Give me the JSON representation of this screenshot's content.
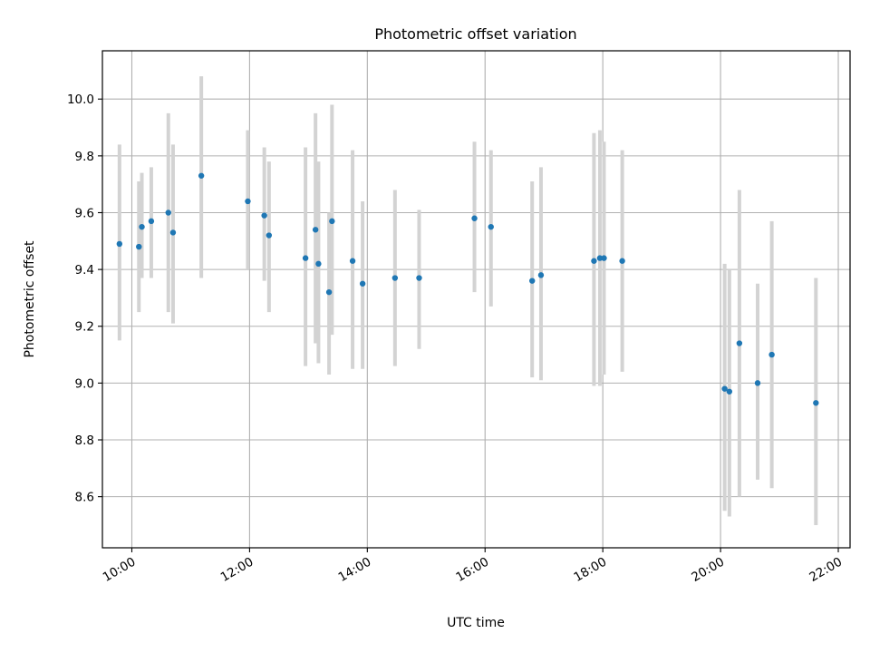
{
  "chart_data": {
    "type": "scatter",
    "title": "Photometric offset variation",
    "xlabel": "UTC time",
    "ylabel": "Photometric offset",
    "grid": true,
    "x_unit": "hours (UTC)",
    "xlim": [
      9.5,
      22.2
    ],
    "ylim": [
      8.42,
      10.17
    ],
    "x_ticks": [
      10,
      12,
      14,
      16,
      18,
      20,
      22
    ],
    "x_tick_labels": [
      "10:00",
      "12:00",
      "14:00",
      "16:00",
      "18:00",
      "20:00",
      "22:00"
    ],
    "y_ticks": [
      8.6,
      8.8,
      9.0,
      9.2,
      9.4,
      9.6,
      9.8,
      10.0
    ],
    "y_tick_labels": [
      "8.6",
      "8.8",
      "9.0",
      "9.2",
      "9.4",
      "9.6",
      "9.8",
      "10.0"
    ],
    "colors": {
      "marker": "#1f77b4",
      "errorbar": "#d3d3d3",
      "grid": "#b0b0b0",
      "axis": "#000000"
    },
    "points": [
      {
        "x": 9.79,
        "y": 9.49,
        "low": 9.15,
        "high": 9.84
      },
      {
        "x": 10.12,
        "y": 9.48,
        "low": 9.25,
        "high": 9.71
      },
      {
        "x": 10.17,
        "y": 9.55,
        "low": 9.37,
        "high": 9.74
      },
      {
        "x": 10.33,
        "y": 9.57,
        "low": 9.37,
        "high": 9.76
      },
      {
        "x": 10.62,
        "y": 9.6,
        "low": 9.25,
        "high": 9.95
      },
      {
        "x": 10.7,
        "y": 9.53,
        "low": 9.21,
        "high": 9.84
      },
      {
        "x": 11.18,
        "y": 9.73,
        "low": 9.37,
        "high": 10.08
      },
      {
        "x": 11.97,
        "y": 9.64,
        "low": 9.4,
        "high": 9.89
      },
      {
        "x": 12.25,
        "y": 9.59,
        "low": 9.36,
        "high": 9.83
      },
      {
        "x": 12.33,
        "y": 9.52,
        "low": 9.25,
        "high": 9.78
      },
      {
        "x": 12.95,
        "y": 9.44,
        "low": 9.06,
        "high": 9.83
      },
      {
        "x": 13.12,
        "y": 9.54,
        "low": 9.14,
        "high": 9.95
      },
      {
        "x": 13.17,
        "y": 9.42,
        "low": 9.07,
        "high": 9.78
      },
      {
        "x": 13.35,
        "y": 9.32,
        "low": 9.03,
        "high": 9.6
      },
      {
        "x": 13.4,
        "y": 9.57,
        "low": 9.17,
        "high": 9.98
      },
      {
        "x": 13.75,
        "y": 9.43,
        "low": 9.05,
        "high": 9.82
      },
      {
        "x": 13.92,
        "y": 9.35,
        "low": 9.05,
        "high": 9.64
      },
      {
        "x": 14.47,
        "y": 9.37,
        "low": 9.06,
        "high": 9.68
      },
      {
        "x": 14.88,
        "y": 9.37,
        "low": 9.12,
        "high": 9.61
      },
      {
        "x": 15.82,
        "y": 9.58,
        "low": 9.32,
        "high": 9.85
      },
      {
        "x": 16.1,
        "y": 9.55,
        "low": 9.27,
        "high": 9.82
      },
      {
        "x": 16.8,
        "y": 9.36,
        "low": 9.02,
        "high": 9.71
      },
      {
        "x": 16.95,
        "y": 9.38,
        "low": 9.01,
        "high": 9.76
      },
      {
        "x": 17.85,
        "y": 9.43,
        "low": 8.99,
        "high": 9.88
      },
      {
        "x": 17.95,
        "y": 9.44,
        "low": 8.99,
        "high": 9.89
      },
      {
        "x": 18.02,
        "y": 9.44,
        "low": 9.03,
        "high": 9.85
      },
      {
        "x": 18.33,
        "y": 9.43,
        "low": 9.04,
        "high": 9.82
      },
      {
        "x": 20.07,
        "y": 8.98,
        "low": 8.55,
        "high": 9.42
      },
      {
        "x": 20.15,
        "y": 8.97,
        "low": 8.53,
        "high": 9.4
      },
      {
        "x": 20.32,
        "y": 9.14,
        "low": 8.6,
        "high": 9.68
      },
      {
        "x": 20.63,
        "y": 9.0,
        "low": 8.66,
        "high": 9.35
      },
      {
        "x": 20.87,
        "y": 9.1,
        "low": 8.63,
        "high": 9.57
      },
      {
        "x": 21.62,
        "y": 8.93,
        "low": 8.5,
        "high": 9.37
      }
    ]
  }
}
